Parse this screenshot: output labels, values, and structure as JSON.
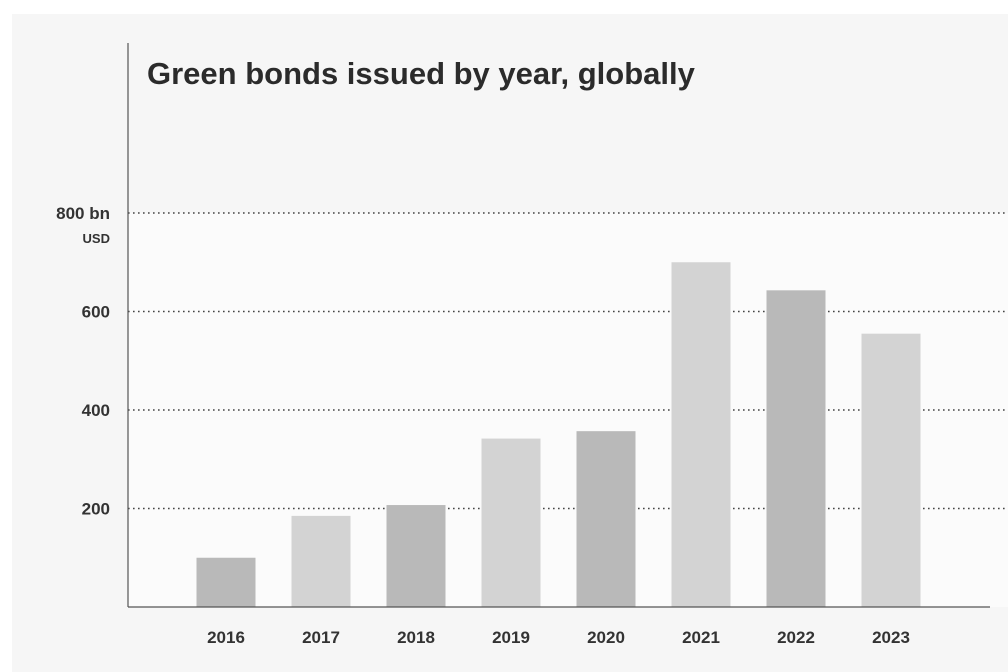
{
  "chart_data": {
    "type": "bar",
    "title": "Green bonds issued by year, globally",
    "xlabel": "",
    "ylabel": "",
    "y_unit": "USD",
    "categories": [
      "2016",
      "2017",
      "2018",
      "2019",
      "2020",
      "2021",
      "2022",
      "2023"
    ],
    "values": [
      100,
      185,
      207,
      342,
      357,
      700,
      643,
      555
    ],
    "ylim": [
      0,
      800
    ],
    "y_ticks": [
      {
        "value": 200,
        "label": "200"
      },
      {
        "value": 400,
        "label": "400"
      },
      {
        "value": 600,
        "label": "600"
      },
      {
        "value": 800,
        "label": "800 bn"
      }
    ],
    "grid": "dotted horizontal",
    "colors": {
      "bar_light": "#d3d3d3",
      "bar_dark": "#b9b9b9",
      "axis": "#555555",
      "grid": "#444444",
      "background": "#f6f6f6",
      "plot_background": "#fbfbfb"
    },
    "bar_shading": [
      "dark",
      "light",
      "dark",
      "light",
      "dark",
      "light",
      "dark",
      "light"
    ]
  }
}
